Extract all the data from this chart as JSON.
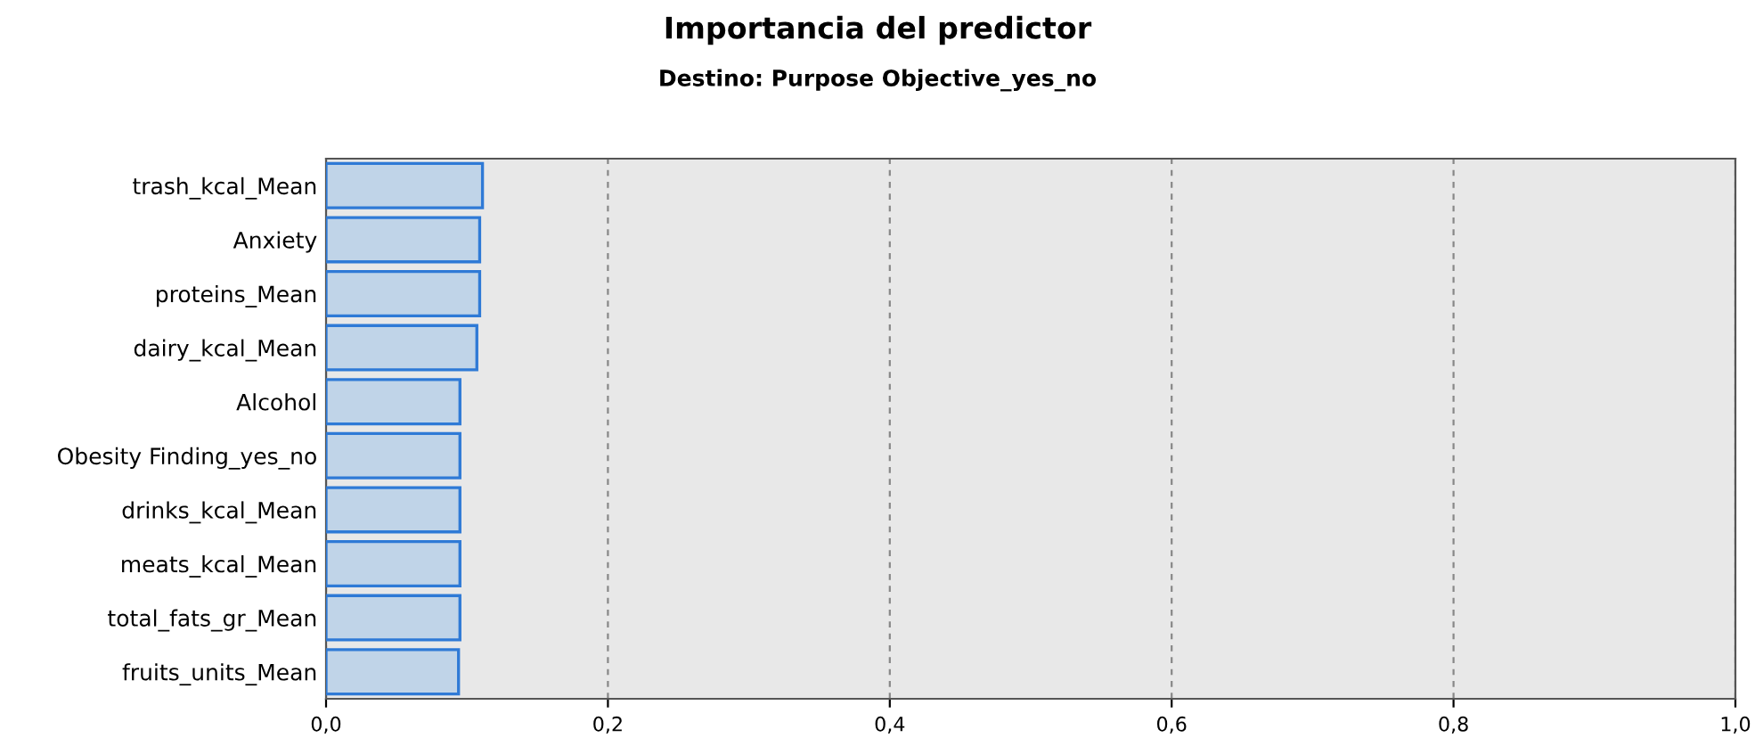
{
  "chart_data": {
    "type": "bar",
    "orientation": "horizontal",
    "title": "Importancia del predictor",
    "subtitle": "Destino: Purpose Objective_yes_no",
    "categories": [
      "trash_kcal_Mean",
      "Anxiety",
      "proteins_Mean",
      "dairy_kcal_Mean",
      "Alcohol",
      "Obesity Finding_yes_no",
      "drinks_kcal_Mean",
      "meats_kcal_Mean",
      "total_fats_gr_Mean",
      "fruits_units_Mean"
    ],
    "values": [
      0.111,
      0.109,
      0.109,
      0.107,
      0.095,
      0.095,
      0.095,
      0.095,
      0.095,
      0.094
    ],
    "color": "#c0d4e8",
    "xlim": [
      0,
      1
    ],
    "xticks": [
      {
        "value": 0,
        "label": "0,0"
      },
      {
        "value": 0.2,
        "label": "0,2"
      },
      {
        "value": 0.4,
        "label": "0,4"
      },
      {
        "value": 0.6,
        "label": "0,6"
      },
      {
        "value": 0.8,
        "label": "0,8"
      },
      {
        "value": 1,
        "label": "1,0"
      }
    ],
    "grid": "x",
    "line_style": "dashed"
  }
}
